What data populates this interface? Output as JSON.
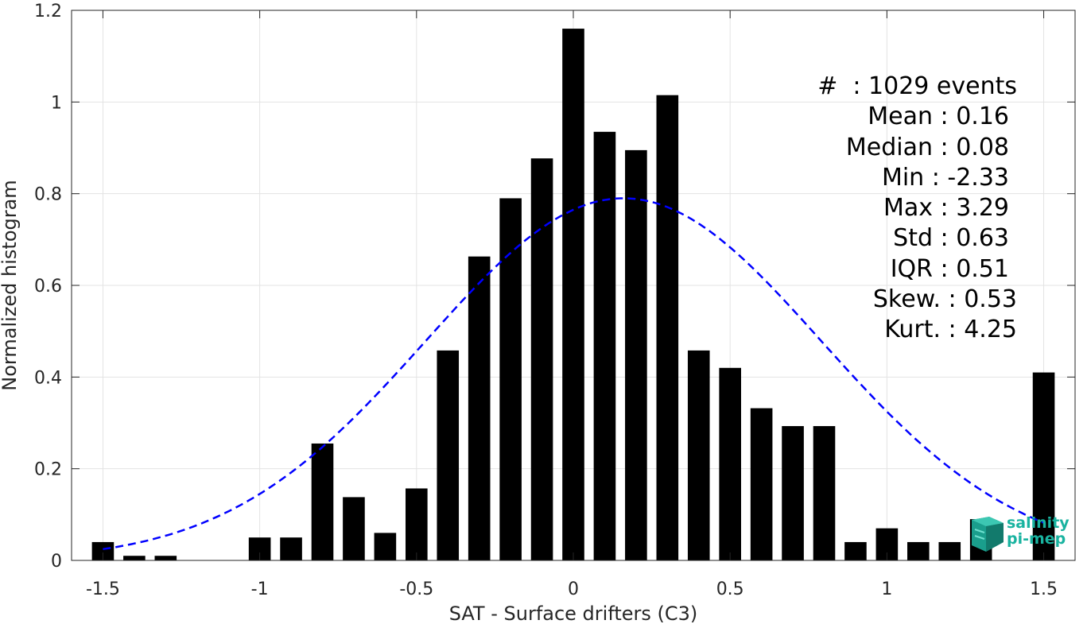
{
  "chart_data": {
    "type": "bar",
    "xlabel": "SAT - Surface drifters (C3)",
    "ylabel": "Normalized histogram",
    "xlim": [
      -1.6,
      1.6
    ],
    "ylim": [
      0,
      1.2
    ],
    "grid": true,
    "bin_centers": [
      -1.5,
      -1.4,
      -1.3,
      -1.2,
      -1.1,
      -1.0,
      -0.9,
      -0.8,
      -0.7,
      -0.6,
      -0.5,
      -0.4,
      -0.3,
      -0.2,
      -0.1,
      0.0,
      0.1,
      0.2,
      0.3,
      0.4,
      0.5,
      0.6,
      0.7,
      0.8,
      0.9,
      1.0,
      1.1,
      1.2,
      1.3,
      1.4,
      1.5
    ],
    "values": [
      0.04,
      0.01,
      0.01,
      0,
      0,
      0.05,
      0.05,
      0.255,
      0.138,
      0.06,
      0.157,
      0.458,
      0.663,
      0.79,
      0.877,
      1.16,
      0.935,
      0.895,
      1.015,
      0.458,
      0.42,
      0.332,
      0.293,
      0.293,
      0.04,
      0.07,
      0.04,
      0.04,
      0.09,
      0,
      0.41
    ],
    "x_ticks": [
      -1.5,
      -1,
      -0.5,
      0,
      0.5,
      1,
      1.5
    ],
    "x_tick_labels": [
      "-1.5",
      "-1",
      "-0.5",
      "0",
      "0.5",
      "1",
      "1.5"
    ],
    "y_ticks": [
      0,
      0.2,
      0.4,
      0.6,
      0.8,
      1,
      1.2
    ],
    "y_tick_labels": [
      "0",
      "0.2",
      "0.4",
      "0.6",
      "0.8",
      "1",
      "1.2"
    ],
    "bar_color": "#000000",
    "fit": {
      "type": "normal",
      "mean": 0.16,
      "std": 0.63,
      "peak": 0.79,
      "x_range": [
        -1.5,
        1.5
      ],
      "color": "#0000ff",
      "style": "dashed"
    },
    "annotations": [
      "#  : 1029 events",
      "Mean : 0.16",
      "Median : 0.08",
      "Min : -2.33",
      "Max : 3.29",
      "Std : 0.63",
      "IQR : 0.51",
      "Skew. : 0.53",
      "Kurt. : 4.25"
    ]
  },
  "logo": {
    "line1": "salinity",
    "line2": "pi-mep",
    "color": "#19b3a0"
  }
}
